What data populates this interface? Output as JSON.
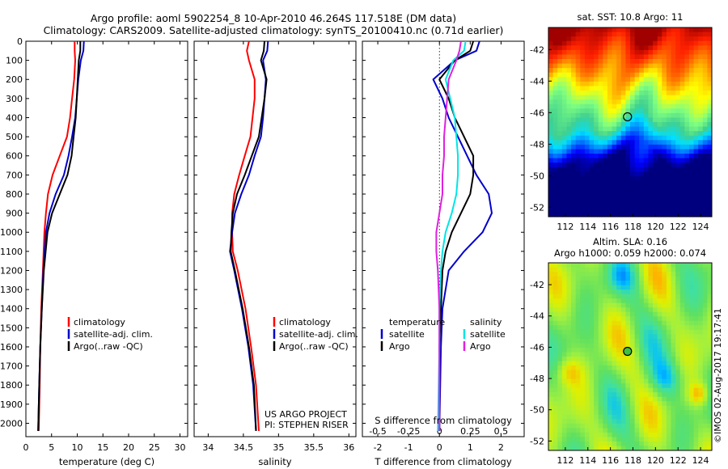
{
  "header": {
    "line1": "Argo profile: aoml 5902254_8 10-Apr-2010 46.264S 117.518E (DM data)",
    "line2": "Climatology: CARS2009. Satellite-adjusted climatology: synTS_20100410.nc (0.71d earlier)"
  },
  "colors": {
    "climatology": "#ff0000",
    "satellite": "#0000cc",
    "argo": "#000000",
    "cyan": "#00e5e5",
    "magenta": "#e020e0"
  },
  "chart_data": [
    {
      "id": "temperature",
      "type": "line",
      "xlabel": "temperature (deg C)",
      "ylabel": "",
      "xlim": [
        0,
        31.5
      ],
      "ylim": [
        2070,
        0
      ],
      "xticks": [
        0,
        5,
        10,
        15,
        20,
        25,
        30
      ],
      "yticks": [
        0,
        100,
        200,
        300,
        400,
        500,
        600,
        700,
        800,
        900,
        1000,
        1100,
        1200,
        1300,
        1400,
        1500,
        1600,
        1700,
        1800,
        1900,
        2000
      ],
      "legend": [
        "climatology",
        "satellite-adj. clim.",
        "Argo(..raw -QC)"
      ],
      "series": [
        {
          "name": "climatology",
          "color": "#ff0000",
          "x": [
            9.5,
            9.5,
            9.6,
            9.4,
            9.0,
            8.6,
            8.0,
            6.6,
            5.2,
            4.3,
            3.9,
            3.6,
            3.3,
            3.0,
            2.8,
            2.7,
            2.5
          ],
          "y": [
            0,
            50,
            100,
            200,
            300,
            400,
            500,
            600,
            700,
            800,
            900,
            1000,
            1200,
            1400,
            1600,
            1800,
            2040
          ]
        },
        {
          "name": "satellite-adj. clim.",
          "color": "#0000cc",
          "x": [
            11.3,
            11.2,
            10.7,
            10.2,
            9.9,
            9.6,
            9.0,
            8.3,
            7.4,
            5.8,
            4.6,
            3.9,
            3.4,
            3.1,
            2.8,
            2.6,
            2.4
          ],
          "y": [
            0,
            50,
            100,
            200,
            300,
            400,
            500,
            600,
            700,
            800,
            900,
            1000,
            1200,
            1400,
            1600,
            1800,
            2040
          ]
        },
        {
          "name": "Argo(..raw -QC)",
          "color": "#000000",
          "x": [
            10.6,
            10.6,
            10.3,
            10.1,
            9.9,
            9.7,
            9.3,
            8.9,
            8.1,
            6.6,
            5.1,
            4.2,
            3.5,
            3.1,
            2.8,
            2.6,
            2.4
          ],
          "y": [
            0,
            50,
            100,
            200,
            300,
            400,
            500,
            600,
            700,
            800,
            900,
            1000,
            1200,
            1400,
            1600,
            1800,
            2040
          ]
        }
      ]
    },
    {
      "id": "salinity",
      "type": "line",
      "xlabel": "salinity",
      "ylabel": "",
      "xlim": [
        33.8,
        36.1
      ],
      "ylim": [
        2070,
        0
      ],
      "xticks": [
        34,
        34.5,
        35,
        35.5,
        36
      ],
      "legend": [
        "climatology",
        "satellite-adj. clim.",
        "Argo(..raw -QC)"
      ],
      "annotations": [
        "US ARGO PROJECT",
        "PI: STEPHEN RISER"
      ],
      "series": [
        {
          "name": "climatology",
          "color": "#ff0000",
          "x": [
            34.58,
            34.55,
            34.58,
            34.66,
            34.66,
            34.63,
            34.6,
            34.52,
            34.44,
            34.37,
            34.34,
            34.34,
            34.35,
            34.42,
            34.53,
            34.61,
            34.68,
            34.72
          ],
          "y": [
            0,
            50,
            100,
            200,
            300,
            400,
            500,
            600,
            700,
            800,
            900,
            1000,
            1100,
            1200,
            1400,
            1600,
            1800,
            2040
          ]
        },
        {
          "name": "satellite-adj. clim.",
          "color": "#0000cc",
          "x": [
            34.85,
            34.84,
            34.78,
            34.82,
            34.8,
            34.78,
            34.75,
            34.66,
            34.58,
            34.47,
            34.38,
            34.34,
            34.31,
            34.37,
            34.48,
            34.57,
            34.64,
            34.68
          ],
          "y": [
            0,
            50,
            100,
            200,
            300,
            400,
            500,
            600,
            700,
            800,
            900,
            1000,
            1100,
            1200,
            1400,
            1600,
            1800,
            2040
          ]
        },
        {
          "name": "Argo(..raw -QC)",
          "color": "#000000",
          "x": [
            34.8,
            34.79,
            34.75,
            34.83,
            34.8,
            34.76,
            34.72,
            34.62,
            34.52,
            34.41,
            34.35,
            34.33,
            34.32,
            34.38,
            34.49,
            34.58,
            34.65,
            34.68
          ],
          "y": [
            0,
            50,
            100,
            200,
            300,
            400,
            500,
            600,
            700,
            800,
            900,
            1000,
            1100,
            1200,
            1400,
            1600,
            1800,
            2040
          ]
        }
      ]
    },
    {
      "id": "difference",
      "type": "line",
      "xlabel": "T difference from climatology",
      "ylabel": "",
      "xlim": [
        -2.5,
        2.75
      ],
      "ylim": [
        2070,
        0
      ],
      "xticks": [
        -2,
        -1,
        0,
        1,
        2
      ],
      "top_axis_label": "S difference from climatology",
      "top_ticks": [
        "-0.5",
        "-0.25",
        "0",
        "0.25",
        "0.5"
      ],
      "legend_headers": [
        "temperature",
        "salinity"
      ],
      "legend": [
        "satellite",
        "Argo",
        "satellite",
        "Argo"
      ],
      "series": [
        {
          "name": "satellite",
          "quantity": "temperature",
          "color": "#0000cc",
          "x": [
            1.3,
            1.2,
            0.5,
            -0.2,
            0.1,
            0.3,
            0.6,
            0.9,
            1.2,
            1.6,
            1.7,
            1.4,
            0.8,
            0.3,
            0.1,
            0.05,
            0.0
          ],
          "y": [
            0,
            50,
            100,
            200,
            300,
            400,
            500,
            600,
            700,
            800,
            900,
            1000,
            1100,
            1200,
            1400,
            1600,
            2040
          ]
        },
        {
          "name": "Argo",
          "quantity": "temperature",
          "color": "#000000",
          "x": [
            1.1,
            1.0,
            0.5,
            0.0,
            0.3,
            0.5,
            0.8,
            1.1,
            1.1,
            1.0,
            0.7,
            0.4,
            0.2,
            0.1,
            0.05,
            0.0,
            0.0
          ],
          "y": [
            0,
            50,
            100,
            200,
            300,
            400,
            500,
            600,
            700,
            800,
            900,
            1000,
            1100,
            1200,
            1400,
            1600,
            2040
          ]
        },
        {
          "name": "satellite",
          "quantity": "salinity",
          "color": "#00e5e5",
          "x": [
            0.85,
            0.8,
            0.45,
            0.2,
            0.35,
            0.5,
            0.55,
            0.6,
            0.6,
            0.55,
            0.4,
            0.2,
            0.1,
            0.05,
            0.0,
            0.0,
            -0.05
          ],
          "y": [
            0,
            50,
            100,
            200,
            300,
            400,
            500,
            600,
            700,
            800,
            900,
            1000,
            1100,
            1200,
            1400,
            1600,
            2040
          ]
        },
        {
          "name": "Argo",
          "quantity": "salinity",
          "color": "#e020e0",
          "x": [
            0.7,
            0.65,
            0.55,
            0.3,
            0.25,
            0.2,
            0.15,
            0.15,
            0.1,
            0.1,
            0.0,
            -0.1,
            -0.1,
            -0.05,
            0.0,
            0.0,
            0.0
          ],
          "y": [
            0,
            50,
            100,
            200,
            300,
            400,
            500,
            600,
            700,
            800,
            900,
            1000,
            1100,
            1200,
            1400,
            1600,
            2040
          ]
        }
      ]
    },
    {
      "id": "sst-map",
      "type": "heatmap",
      "title": "sat. SST: 10.8 Argo: 11",
      "xlim": [
        110.5,
        125
      ],
      "ylim": [
        -52.6,
        -40.6
      ],
      "xticks": [
        112,
        114,
        116,
        118,
        120,
        122,
        124
      ],
      "yticks": [
        -42,
        -44,
        -46,
        -48,
        -50,
        -52
      ],
      "marker": {
        "lon": 117.518,
        "lat": -46.264
      },
      "colors": [
        "#00007f",
        "#0000ff",
        "#0080ff",
        "#00e0ff",
        "#40d090",
        "#80ff80",
        "#ffff00",
        "#ff8000",
        "#ff2000",
        "#a00000"
      ]
    },
    {
      "id": "sla-map",
      "type": "heatmap",
      "title_lines": [
        "Altim. SLA: 0.16",
        "Argo h1000: 0.059 h2000: 0.074"
      ],
      "xlim": [
        110.5,
        125
      ],
      "ylim": [
        -52.6,
        -40.6
      ],
      "xticks": [
        112,
        114,
        116,
        118,
        120,
        122,
        124
      ],
      "yticks": [
        -42,
        -44,
        -46,
        -48,
        -50,
        -52
      ],
      "marker": {
        "lon": 117.518,
        "lat": -46.264
      },
      "colors": [
        "#0060ff",
        "#00c0ff",
        "#40e0a0",
        "#60e060",
        "#a0f040",
        "#e0f000",
        "#ffb000",
        "#ff6000",
        "#e01000"
      ]
    }
  ],
  "footer": {
    "watermark": "©IMOS 02-Aug-2017 19:17:41"
  }
}
